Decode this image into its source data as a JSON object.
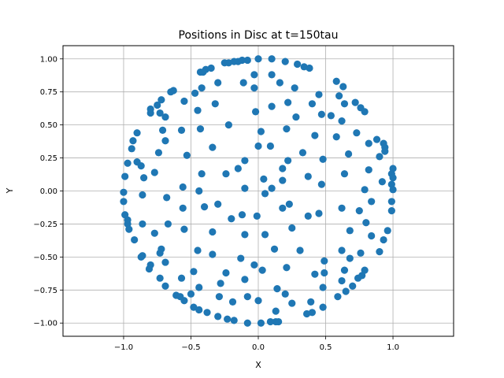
{
  "chart_data": {
    "type": "scatter",
    "title": "Positions in Disc at t=150tau",
    "xlabel": "X",
    "ylabel": "Y",
    "xlim": [
      -1.45,
      1.45
    ],
    "ylim": [
      -1.1,
      1.1
    ],
    "grid": true,
    "legend": "none",
    "x_ticks": [
      -1.0,
      -0.5,
      0.0,
      0.5,
      1.0
    ],
    "x_tick_labels": [
      "−1.0",
      "−0.5",
      "0.0",
      "0.5",
      "1.0"
    ],
    "y_ticks": [
      -1.0,
      -0.75,
      -0.5,
      -0.25,
      0.0,
      0.25,
      0.5,
      0.75,
      1.0
    ],
    "y_tick_labels": [
      "−1.00",
      "−0.75",
      "−0.50",
      "−0.25",
      "0.00",
      "0.25",
      "0.50",
      "0.75",
      "1.00"
    ],
    "color": "#1f77b4",
    "points": [
      [
        -0.25,
        0.97
      ],
      [
        -0.22,
        0.97
      ],
      [
        -0.18,
        0.98
      ],
      [
        -0.15,
        0.98
      ],
      [
        -0.12,
        0.99
      ],
      [
        -0.08,
        0.99
      ],
      [
        0.0,
        1.0
      ],
      [
        0.1,
        1.0
      ],
      [
        0.2,
        0.98
      ],
      [
        0.29,
        0.96
      ],
      [
        0.34,
        0.94
      ],
      [
        0.38,
        0.93
      ],
      [
        -0.43,
        0.9
      ],
      [
        -0.39,
        0.92
      ],
      [
        -0.47,
        0.74
      ],
      [
        0.58,
        0.83
      ],
      [
        0.63,
        0.79
      ],
      [
        0.72,
        0.67
      ],
      [
        0.76,
        0.63
      ],
      [
        0.79,
        0.6
      ],
      [
        0.88,
        0.39
      ],
      [
        0.93,
        0.36
      ],
      [
        0.94,
        0.33
      ],
      [
        0.94,
        0.3
      ],
      [
        1.0,
        0.17
      ],
      [
        0.99,
        0.13
      ],
      [
        1.0,
        0.1
      ],
      [
        0.99,
        0.05
      ],
      [
        1.0,
        0.01
      ],
      [
        0.99,
        -0.08
      ],
      [
        0.99,
        -0.15
      ],
      [
        0.96,
        -0.3
      ],
      [
        0.93,
        -0.37
      ],
      [
        0.9,
        -0.46
      ],
      [
        0.79,
        -0.6
      ],
      [
        0.77,
        -0.64
      ],
      [
        0.74,
        -0.66
      ],
      [
        0.7,
        -0.72
      ],
      [
        0.65,
        -0.76
      ],
      [
        0.59,
        -0.8
      ],
      [
        0.48,
        -0.88
      ],
      [
        0.4,
        -0.92
      ],
      [
        0.36,
        -0.93
      ],
      [
        0.13,
        -0.99
      ],
      [
        0.15,
        -0.99
      ],
      [
        0.09,
        -0.99
      ],
      [
        0.02,
        -1.0
      ],
      [
        -0.08,
        -1.0
      ],
      [
        -0.18,
        -0.98
      ],
      [
        -0.23,
        -0.97
      ],
      [
        -0.3,
        -0.95
      ],
      [
        -0.38,
        -0.92
      ],
      [
        -0.44,
        -0.9
      ],
      [
        -0.48,
        -0.88
      ],
      [
        -0.55,
        -0.83
      ],
      [
        -0.61,
        -0.79
      ],
      [
        -0.58,
        -0.8
      ],
      [
        -0.69,
        -0.72
      ],
      [
        -0.73,
        -0.66
      ],
      [
        -0.81,
        -0.59
      ],
      [
        -0.8,
        -0.56
      ],
      [
        -0.86,
        -0.49
      ],
      [
        -0.87,
        -0.5
      ],
      [
        -0.92,
        -0.37
      ],
      [
        -0.96,
        -0.29
      ],
      [
        -0.97,
        -0.25
      ],
      [
        -0.97,
        -0.22
      ],
      [
        -0.99,
        -0.18
      ],
      [
        -1.0,
        -0.08
      ],
      [
        -1.0,
        -0.01
      ],
      [
        -0.99,
        0.11
      ],
      [
        -0.97,
        0.21
      ],
      [
        -0.94,
        0.32
      ],
      [
        -0.93,
        0.38
      ],
      [
        -0.9,
        0.44
      ],
      [
        -0.8,
        0.59
      ],
      [
        -0.8,
        0.62
      ],
      [
        -0.75,
        0.65
      ],
      [
        -0.72,
        0.69
      ],
      [
        -0.65,
        0.75
      ],
      [
        -0.63,
        0.76
      ],
      [
        -0.41,
        0.9
      ],
      [
        -0.35,
        0.93
      ],
      [
        -0.3,
        0.82
      ],
      [
        -0.42,
        0.78
      ],
      [
        -0.11,
        0.82
      ],
      [
        -0.03,
        0.88
      ],
      [
        0.1,
        0.88
      ],
      [
        0.16,
        0.82
      ],
      [
        0.27,
        0.78
      ],
      [
        0.45,
        0.73
      ],
      [
        0.6,
        0.72
      ],
      [
        0.64,
        0.66
      ],
      [
        0.47,
        0.58
      ],
      [
        0.22,
        0.67
      ],
      [
        0.1,
        0.64
      ],
      [
        0.21,
        0.47
      ],
      [
        0.42,
        0.42
      ],
      [
        0.58,
        0.41
      ],
      [
        0.73,
        0.44
      ],
      [
        0.82,
        0.36
      ],
      [
        0.9,
        0.26
      ],
      [
        0.92,
        0.07
      ],
      [
        0.82,
        0.16
      ],
      [
        0.79,
        0.01
      ],
      [
        0.84,
        -0.08
      ],
      [
        0.75,
        -0.15
      ],
      [
        0.8,
        -0.24
      ],
      [
        0.84,
        -0.34
      ],
      [
        0.76,
        -0.47
      ],
      [
        0.68,
        -0.51
      ],
      [
        0.64,
        -0.6
      ],
      [
        0.62,
        -0.68
      ],
      [
        0.49,
        -0.62
      ],
      [
        0.49,
        -0.53
      ],
      [
        0.62,
        -0.45
      ],
      [
        0.68,
        -0.3
      ],
      [
        0.62,
        -0.13
      ],
      [
        0.64,
        0.13
      ],
      [
        0.67,
        0.28
      ],
      [
        0.62,
        0.53
      ],
      [
        0.54,
        0.57
      ],
      [
        0.4,
        0.66
      ],
      [
        0.28,
        0.56
      ],
      [
        0.33,
        0.29
      ],
      [
        0.48,
        0.24
      ],
      [
        0.37,
        0.11
      ],
      [
        0.47,
        0.05
      ],
      [
        0.45,
        -0.17
      ],
      [
        0.37,
        -0.19
      ],
      [
        0.23,
        -0.1
      ],
      [
        0.25,
        -0.28
      ],
      [
        0.31,
        -0.45
      ],
      [
        0.42,
        -0.63
      ],
      [
        0.48,
        -0.73
      ],
      [
        0.39,
        -0.84
      ],
      [
        0.25,
        -0.85
      ],
      [
        0.13,
        -0.91
      ],
      [
        0.2,
        -0.78
      ],
      [
        0.21,
        -0.58
      ],
      [
        0.12,
        -0.44
      ],
      [
        -0.03,
        -0.56
      ],
      [
        -0.13,
        -0.51
      ],
      [
        -0.1,
        -0.33
      ],
      [
        -0.01,
        -0.19
      ],
      [
        -0.12,
        -0.18
      ],
      [
        -0.2,
        -0.21
      ],
      [
        -0.34,
        -0.31
      ],
      [
        -0.45,
        -0.45
      ],
      [
        -0.34,
        -0.48
      ],
      [
        -0.48,
        -0.61
      ],
      [
        -0.57,
        -0.66
      ],
      [
        -0.5,
        -0.78
      ],
      [
        -0.44,
        -0.73
      ],
      [
        -0.28,
        -0.7
      ],
      [
        -0.24,
        -0.62
      ],
      [
        -0.1,
        -0.67
      ],
      [
        -0.08,
        -0.8
      ],
      [
        -0.19,
        -0.84
      ],
      [
        -0.29,
        -0.8
      ],
      [
        0.0,
        -0.83
      ],
      [
        0.14,
        -0.74
      ],
      [
        0.03,
        -0.6
      ],
      [
        -0.55,
        -0.29
      ],
      [
        -0.4,
        -0.12
      ],
      [
        -0.56,
        -0.13
      ],
      [
        -0.44,
        0.0
      ],
      [
        -0.56,
        0.03
      ],
      [
        -0.68,
        -0.05
      ],
      [
        -0.67,
        -0.25
      ],
      [
        -0.72,
        -0.44
      ],
      [
        -0.69,
        -0.54
      ],
      [
        -0.77,
        -0.32
      ],
      [
        -0.73,
        -0.47
      ],
      [
        -0.86,
        -0.25
      ],
      [
        -0.86,
        -0.03
      ],
      [
        -0.9,
        0.22
      ],
      [
        -0.85,
        0.1
      ],
      [
        -0.77,
        0.14
      ],
      [
        -0.74,
        0.29
      ],
      [
        -0.69,
        0.38
      ],
      [
        -0.71,
        0.46
      ],
      [
        -0.69,
        0.56
      ],
      [
        -0.55,
        0.68
      ],
      [
        -0.57,
        0.46
      ],
      [
        -0.43,
        0.47
      ],
      [
        -0.45,
        0.61
      ],
      [
        -0.32,
        0.66
      ],
      [
        -0.22,
        0.5
      ],
      [
        -0.34,
        0.33
      ],
      [
        -0.42,
        0.13
      ],
      [
        -0.24,
        0.13
      ],
      [
        -0.3,
        -0.1
      ],
      [
        -0.1,
        0.02
      ],
      [
        -0.15,
        0.17
      ],
      [
        -0.1,
        0.23
      ],
      [
        0.0,
        0.34
      ],
      [
        0.02,
        0.45
      ],
      [
        -0.02,
        0.6
      ],
      [
        0.09,
        0.34
      ],
      [
        0.18,
        0.17
      ],
      [
        0.22,
        0.23
      ],
      [
        0.18,
        0.08
      ],
      [
        0.04,
        0.09
      ],
      [
        0.1,
        0.02
      ],
      [
        0.05,
        -0.02
      ],
      [
        0.18,
        -0.13
      ],
      [
        0.05,
        -0.33
      ],
      [
        -0.03,
        0.78
      ],
      [
        -0.73,
        0.59
      ],
      [
        -0.53,
        0.27
      ],
      [
        -0.87,
        0.19
      ]
    ]
  }
}
